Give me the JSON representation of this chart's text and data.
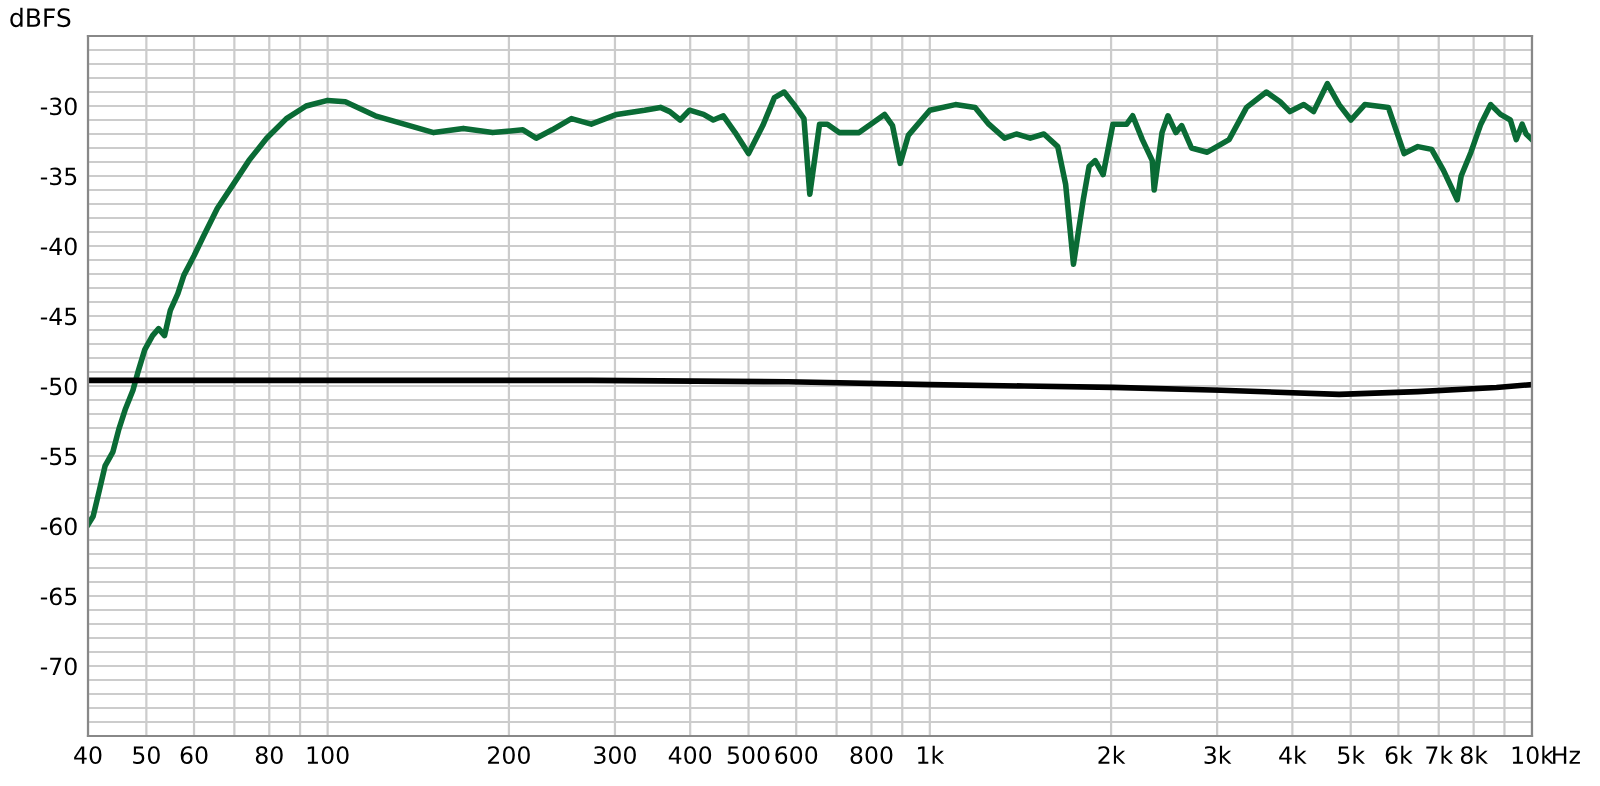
{
  "chart_data": {
    "type": "line",
    "ylabel": "dBFS",
    "log": "x",
    "grid": true,
    "legend": false,
    "marker": "none",
    "line_style": "solid",
    "xlim": [
      40,
      10000
    ],
    "ylim": [
      -75,
      -25
    ],
    "xticks": [
      40,
      50,
      60,
      {
        "value": 70,
        "label": null
      },
      80,
      {
        "value": 90,
        "label": null
      },
      100,
      200,
      300,
      400,
      500,
      600,
      {
        "value": 700,
        "label": null
      },
      800,
      {
        "value": 900,
        "label": null
      },
      {
        "value": 1000,
        "label": "1k"
      },
      {
        "value": 2000,
        "label": "2k"
      },
      {
        "value": 3000,
        "label": "3k"
      },
      {
        "value": 4000,
        "label": "4k"
      },
      {
        "value": 5000,
        "label": "5k"
      },
      {
        "value": 6000,
        "label": "6k"
      },
      {
        "value": 7000,
        "label": "7k"
      },
      {
        "value": 8000,
        "label": "8k"
      },
      {
        "value": 9000,
        "label": null
      },
      {
        "value": 10000,
        "label": "10k"
      }
    ],
    "xlabel": "Hz",
    "yticks": [
      {
        "value": -26,
        "label": null
      },
      {
        "value": -27,
        "label": null
      },
      {
        "value": -28,
        "label": null
      },
      {
        "value": -29,
        "label": null
      },
      -30,
      {
        "value": -31,
        "label": null
      },
      {
        "value": -32,
        "label": null
      },
      {
        "value": -33,
        "label": null
      },
      {
        "value": -34,
        "label": null
      },
      -35,
      {
        "value": -36,
        "label": null
      },
      {
        "value": -37,
        "label": null
      },
      {
        "value": -38,
        "label": null
      },
      {
        "value": -39,
        "label": null
      },
      -40,
      {
        "value": -41,
        "label": null
      },
      {
        "value": -42,
        "label": null
      },
      {
        "value": -43,
        "label": null
      },
      {
        "value": -44,
        "label": null
      },
      -45,
      {
        "value": -46,
        "label": null
      },
      {
        "value": -47,
        "label": null
      },
      {
        "value": -48,
        "label": null
      },
      {
        "value": -49,
        "label": null
      },
      -50,
      {
        "value": -51,
        "label": null
      },
      {
        "value": -52,
        "label": null
      },
      {
        "value": -53,
        "label": null
      },
      {
        "value": -54,
        "label": null
      },
      -55,
      {
        "value": -56,
        "label": null
      },
      {
        "value": -57,
        "label": null
      },
      {
        "value": -58,
        "label": null
      },
      {
        "value": -59,
        "label": null
      },
      -60,
      {
        "value": -61,
        "label": null
      },
      {
        "value": -62,
        "label": null
      },
      {
        "value": -63,
        "label": null
      },
      {
        "value": -64,
        "label": null
      },
      -65,
      {
        "value": -66,
        "label": null
      },
      {
        "value": -67,
        "label": null
      },
      {
        "value": -68,
        "label": null
      },
      {
        "value": -69,
        "label": null
      },
      -70,
      {
        "value": -71,
        "label": null
      },
      {
        "value": -72,
        "label": null
      },
      {
        "value": -73,
        "label": null
      },
      {
        "value": -74,
        "label": null
      }
    ],
    "series": [
      {
        "color": "#0a6b35",
        "x": [
          40,
          40.8,
          41.8,
          42.7,
          44.0,
          45.0,
          46.1,
          47.5,
          48.5,
          49.7,
          51.2,
          52.4,
          53.6,
          54.8,
          56.4,
          57.7,
          60.0,
          62.2,
          65.6,
          69.7,
          74.0,
          79.2,
          85.4,
          92.1,
          100,
          107,
          120,
          134,
          150,
          168,
          188,
          211,
          222,
          236,
          254,
          274,
          302,
          336,
          357,
          370,
          385,
          399,
          421,
          437,
          454,
          475,
          500,
          528,
          552,
          573,
          595,
          618,
          632,
          656,
          676,
          707,
          763,
          798,
          841,
          867,
          893,
          921,
          1000,
          1103,
          1189,
          1253,
          1331,
          1392,
          1468,
          1547,
          1631,
          1681,
          1732,
          1798,
          1839,
          1882,
          1940,
          2014,
          2123,
          2172,
          2254,
          2341,
          2358,
          2430,
          2486,
          2562,
          2620,
          2720,
          2889,
          3140,
          3358,
          3622,
          3817,
          3963,
          4178,
          4338,
          4572,
          4783,
          5005,
          5276,
          5774,
          6133,
          6465,
          6813,
          7128,
          7513,
          7627,
          7918,
          8222,
          8538,
          8865,
          9206,
          9417,
          9631,
          9777,
          10000
        ],
        "values": [
          -59.9,
          -59.3,
          -57.4,
          -55.7,
          -54.7,
          -53.1,
          -51.7,
          -50.3,
          -48.9,
          -47.4,
          -46.4,
          -45.9,
          -46.4,
          -44.6,
          -43.4,
          -42.1,
          -40.7,
          -39.3,
          -37.3,
          -35.6,
          -33.9,
          -32.3,
          -30.9,
          -30.0,
          -29.6,
          -29.7,
          -30.7,
          -31.3,
          -31.9,
          -31.6,
          -31.9,
          -31.7,
          -32.3,
          -31.7,
          -30.9,
          -31.3,
          -30.6,
          -30.3,
          -30.1,
          -30.4,
          -31.0,
          -30.3,
          -30.6,
          -31.0,
          -30.7,
          -31.9,
          -33.4,
          -31.4,
          -29.4,
          -29.0,
          -29.9,
          -30.9,
          -36.3,
          -31.3,
          -31.3,
          -31.9,
          -31.9,
          -31.3,
          -30.6,
          -31.4,
          -34.1,
          -32.1,
          -30.3,
          -29.9,
          -30.1,
          -31.3,
          -32.3,
          -32.0,
          -32.3,
          -32.0,
          -32.9,
          -35.6,
          -41.3,
          -36.7,
          -34.3,
          -33.9,
          -34.9,
          -31.3,
          -31.3,
          -30.7,
          -32.4,
          -33.9,
          -36.0,
          -31.9,
          -30.7,
          -31.9,
          -31.4,
          -33.0,
          -33.3,
          -32.4,
          -30.1,
          -29.0,
          -29.7,
          -30.4,
          -29.9,
          -30.4,
          -28.4,
          -29.9,
          -31.0,
          -29.9,
          -30.1,
          -33.4,
          -32.9,
          -33.1,
          -34.6,
          -36.7,
          -35.0,
          -33.3,
          -31.3,
          -29.9,
          -30.6,
          -31.0,
          -32.4,
          -31.3,
          -32.0,
          -32.4
        ]
      },
      {
        "color": "#000000",
        "x": [
          40,
          100,
          274,
          582,
          1000,
          1435,
          2014,
          3045,
          4783,
          6465,
          8730,
          10000
        ],
        "values": [
          -49.6,
          -49.6,
          -49.6,
          -49.7,
          -49.9,
          -50.0,
          -50.1,
          -50.3,
          -50.6,
          -50.4,
          -50.1,
          -49.9
        ]
      }
    ]
  }
}
